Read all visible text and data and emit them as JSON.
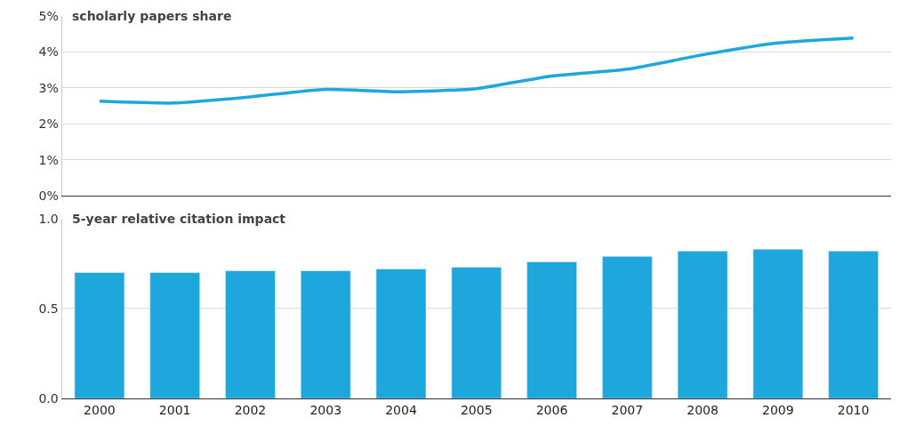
{
  "chart_data": [
    {
      "type": "line",
      "title": "scholarly papers share",
      "categories": [
        "2000",
        "2001",
        "2002",
        "2003",
        "2004",
        "2005",
        "2006",
        "2007",
        "2008",
        "2009",
        "2010"
      ],
      "series": [
        {
          "color": "#1ea7dc",
          "values": [
            2.63,
            2.58,
            2.75,
            2.96,
            2.89,
            2.98,
            3.33,
            3.52,
            3.92,
            4.25,
            4.39
          ]
        }
      ],
      "ylim": [
        0,
        5
      ],
      "yticks": [
        {
          "value": 0,
          "label": "0%"
        },
        {
          "value": 1,
          "label": "1%"
        },
        {
          "value": 2,
          "label": "2%"
        },
        {
          "value": 3,
          "label": "3%"
        },
        {
          "value": 4,
          "label": "4%"
        },
        {
          "value": 5,
          "label": "5%"
        }
      ],
      "grid": "y",
      "tick_labels": "y",
      "marker": "none",
      "line_style": "solid"
    },
    {
      "type": "bar",
      "title": "5-year relative citation impact",
      "categories": [
        "2000",
        "2001",
        "2002",
        "2003",
        "2004",
        "2005",
        "2006",
        "2007",
        "2008",
        "2009",
        "2010"
      ],
      "series": [
        {
          "color": "#1ea7dc",
          "values": [
            0.7,
            0.7,
            0.71,
            0.71,
            0.72,
            0.73,
            0.76,
            0.79,
            0.82,
            0.83,
            0.82
          ]
        }
      ],
      "ylim": [
        0,
        1.0
      ],
      "yticks": [
        {
          "value": 0,
          "label": "0.0"
        },
        {
          "value": 0.5,
          "label": "0.5"
        },
        {
          "value": 1.0,
          "label": "1.0"
        }
      ],
      "grid": "y"
    }
  ]
}
